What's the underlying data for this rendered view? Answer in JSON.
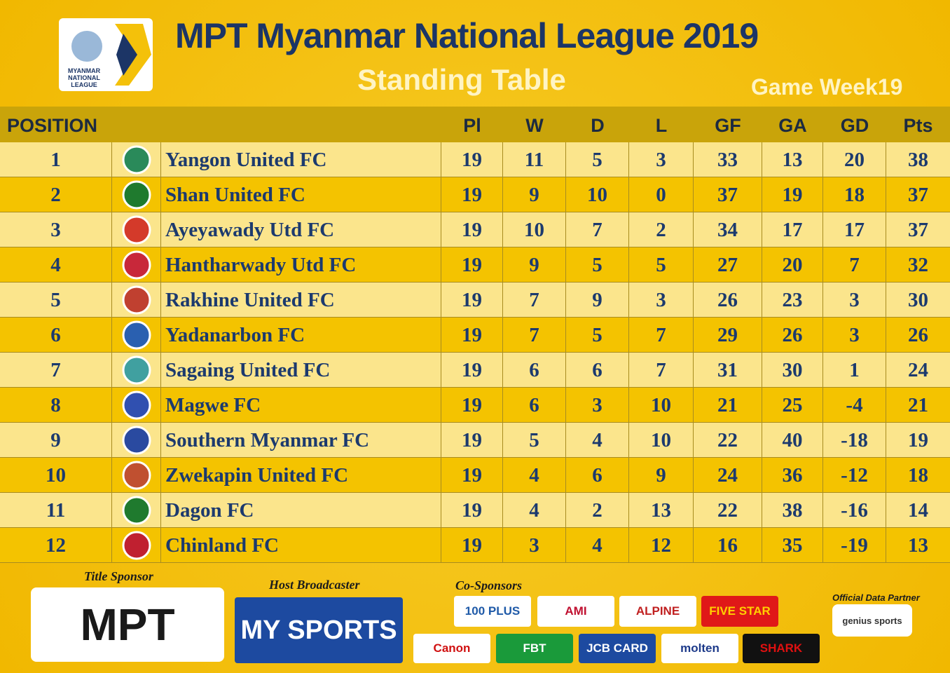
{
  "header": {
    "logo_text": "MYANMAR NATIONAL LEAGUE",
    "title": "MPT Myanmar National League 2019",
    "subtitle": "Standing Table",
    "week": "Game Week19"
  },
  "table": {
    "columns": [
      "POSITION",
      "Pl",
      "W",
      "D",
      "L",
      "GF",
      "GA",
      "GD",
      "Pts"
    ],
    "rows": [
      [
        1,
        "Yangon United FC",
        19,
        11,
        5,
        3,
        33,
        13,
        20,
        38
      ],
      [
        2,
        "Shan United FC",
        19,
        9,
        10,
        0,
        37,
        19,
        18,
        37
      ],
      [
        3,
        "Ayeyawady Utd FC",
        19,
        10,
        7,
        2,
        34,
        17,
        17,
        37
      ],
      [
        4,
        "Hantharwady Utd FC",
        19,
        9,
        5,
        5,
        27,
        20,
        7,
        32
      ],
      [
        5,
        "Rakhine United FC",
        19,
        7,
        9,
        3,
        26,
        23,
        3,
        30
      ],
      [
        6,
        "Yadanarbon FC",
        19,
        7,
        5,
        7,
        29,
        26,
        3,
        26
      ],
      [
        7,
        "Sagaing United FC",
        19,
        6,
        6,
        7,
        31,
        30,
        1,
        24
      ],
      [
        8,
        "Magwe FC",
        19,
        6,
        3,
        10,
        21,
        25,
        -4,
        21
      ],
      [
        9,
        "Southern Myanmar FC",
        19,
        5,
        4,
        10,
        22,
        40,
        -18,
        19
      ],
      [
        10,
        "Zwekapin United FC",
        19,
        4,
        6,
        9,
        24,
        36,
        -12,
        18
      ],
      [
        11,
        "Dagon FC",
        19,
        4,
        2,
        13,
        22,
        38,
        -16,
        14
      ],
      [
        12,
        "Chinland FC",
        19,
        3,
        4,
        12,
        16,
        35,
        -19,
        13
      ]
    ]
  },
  "sponsors": {
    "title_label": "Title Sponsor",
    "title_sponsor": "MPT",
    "broadcaster_label": "Host Broadcaster",
    "broadcaster": "MY SPORTS",
    "co_label": "Co-Sponsors",
    "co_sponsors": [
      "100 PLUS",
      "AMI",
      "ALPINE",
      "FIVE STAR",
      "Canon",
      "FBT",
      "JCB CARD",
      "molten",
      "SHARK"
    ],
    "data_label": "Official Data Partner",
    "data_partner": "genius sports"
  }
}
